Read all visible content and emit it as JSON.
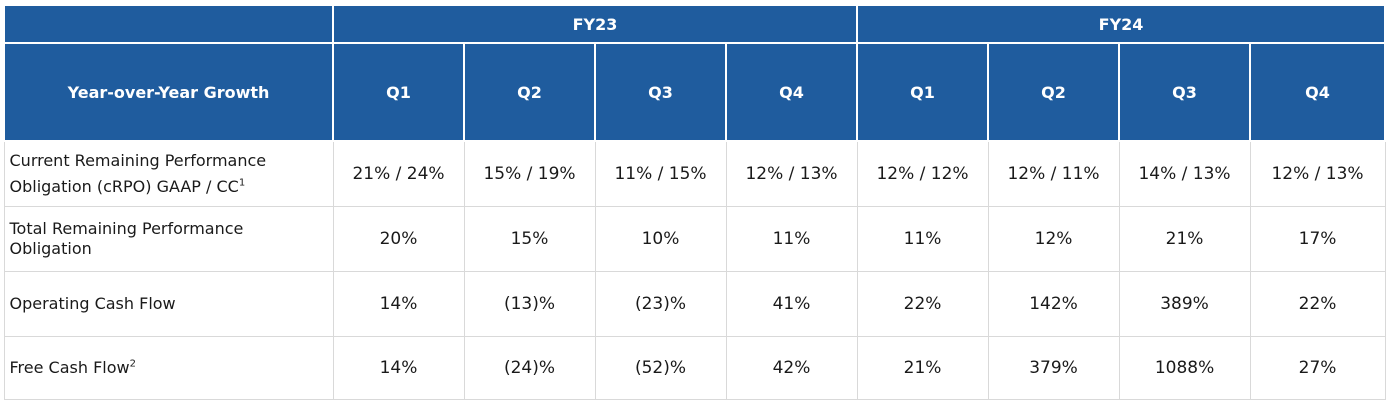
{
  "header": {
    "row_header_label": "Year-over-Year Growth",
    "fiscal_years": [
      "FY23",
      "FY24"
    ],
    "quarters": [
      "Q1",
      "Q2",
      "Q3",
      "Q4",
      "Q1",
      "Q2",
      "Q3",
      "Q4"
    ]
  },
  "rows": [
    {
      "label_line1": "Current Remaining Performance",
      "label_line2": "Obligation (cRPO) GAAP / CC",
      "footnote": "1",
      "values": [
        "21% / 24%",
        "15% / 19%",
        "11% / 15%",
        "12% / 13%",
        "12% / 12%",
        "12% / 11%",
        "14% / 13%",
        "12% / 13%"
      ]
    },
    {
      "label_line1": "Total Remaining Performance",
      "label_line2": "Obligation",
      "values": [
        "20%",
        "15%",
        "10%",
        "11%",
        "11%",
        "12%",
        "21%",
        "17%"
      ]
    },
    {
      "label_line1": "Operating Cash Flow",
      "values": [
        "14%",
        "(13)%",
        "(23)%",
        "41%",
        "22%",
        "142%",
        "389%",
        "22%"
      ]
    },
    {
      "label_line1": "Free Cash Flow",
      "footnote": "2",
      "values": [
        "14%",
        "(24)%",
        "(52)%",
        "42%",
        "21%",
        "379%",
        "1088%",
        "27%"
      ]
    }
  ],
  "colors": {
    "header_bg": "#1f5c9e",
    "header_text": "#ffffff",
    "grid": "#d9d9d9",
    "body_text": "#1a1a1a"
  }
}
